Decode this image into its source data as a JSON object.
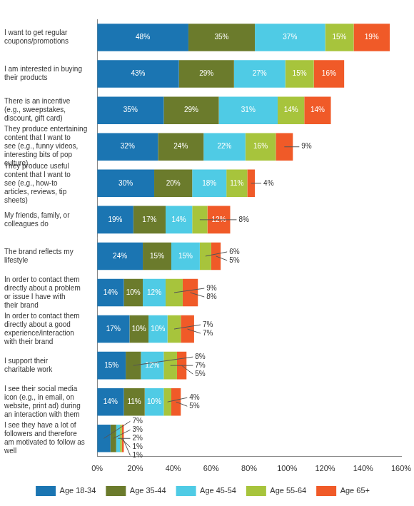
{
  "chart_data": {
    "type": "bar",
    "orientation": "horizontal",
    "stacked": true,
    "data_labels": true,
    "grid": false,
    "legend": "bottom",
    "categories": [
      "I want to get regular coupons/promotions",
      "I am interested in buying their products",
      "There is an incentive (e.g., sweepstakes, discount, gift card)",
      "They produce entertaining content that I want to see (e.g., funny videos, interesting bits of pop culture)",
      "They produce useful content that I want to see (e.g., how-to articles, reviews, tip sheets)",
      "My friends, family, or colleagues do",
      "The brand reflects my lifestyle",
      "In order to contact them directly about a problem or issue I have with their brand",
      "In order to contact them directly about a good experience/interaction with their brand",
      "I support their charitable work",
      "I see their social media icon (e.g., in email, on website, print ad) during an interaction with them",
      "I see they have a lot of followers and therefore am motivated to follow as well"
    ],
    "series": [
      {
        "name": "Age 18-34",
        "color": "#1b75b2",
        "values": [
          48,
          43,
          35,
          32,
          30,
          19,
          24,
          14,
          17,
          15,
          14,
          7
        ],
        "value_labels": [
          "48%",
          "43%",
          "35%",
          "32%",
          "30%",
          "19%",
          "24%",
          "14%",
          "17%",
          "15%",
          "14%",
          "7%"
        ]
      },
      {
        "name": "Age 35-44",
        "color": "#6b7b2c",
        "values": [
          35,
          29,
          29,
          24,
          20,
          17,
          15,
          10,
          10,
          8,
          11,
          3
        ],
        "value_labels": [
          "35%",
          "29%",
          "29%",
          "24%",
          "20%",
          "17%",
          "15%",
          "10%",
          "10%",
          "8%",
          "11%",
          "3%"
        ]
      },
      {
        "name": "Age 45-54",
        "color": "#4fcbe5",
        "values": [
          37,
          27,
          31,
          22,
          18,
          14,
          15,
          12,
          10,
          12,
          10,
          2
        ],
        "value_labels": [
          "37%",
          "27%",
          "31%",
          "22%",
          "18%",
          "14%",
          "15%",
          "12%",
          "10%",
          "12%",
          "10%",
          "2%"
        ]
      },
      {
        "name": "Age 55-64",
        "color": "#a7c43c",
        "values": [
          15,
          15,
          14,
          16,
          11,
          8,
          6,
          9,
          7,
          7,
          4,
          1
        ],
        "value_labels": [
          "15%",
          "15%",
          "14%",
          "16%",
          "11%",
          "8%",
          "6%",
          "9%",
          "7%",
          "7%",
          "4%",
          "1%"
        ]
      },
      {
        "name": "Age 65+",
        "color": "#f05a28",
        "values": [
          19,
          16,
          14,
          9,
          4,
          12,
          5,
          8,
          7,
          5,
          5,
          1
        ],
        "value_labels": [
          "19%",
          "16%",
          "14%",
          "9%",
          "4%",
          "12%",
          "5%",
          "8%",
          "7%",
          "5%",
          "5%",
          "1%"
        ]
      }
    ],
    "xlim": [
      0,
      160
    ],
    "xticks": [
      {
        "value": 0,
        "label": "0%"
      },
      {
        "value": 20,
        "label": "20%"
      },
      {
        "value": 40,
        "label": "40%"
      },
      {
        "value": 60,
        "label": "60%"
      },
      {
        "value": 80,
        "label": "80%"
      },
      {
        "value": 100,
        "label": "100%"
      },
      {
        "value": 120,
        "label": "120%"
      },
      {
        "value": 140,
        "label": "140%"
      },
      {
        "value": 160,
        "label": "160%"
      }
    ]
  }
}
